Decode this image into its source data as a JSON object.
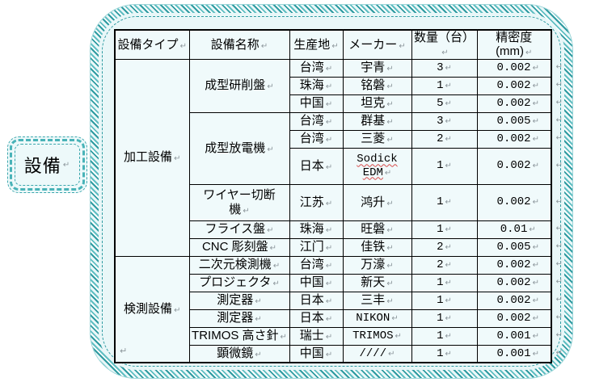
{
  "label_box": {
    "text": "設備"
  },
  "marks": {
    "cell_end": "↵",
    "paragraph": "↵"
  },
  "colors": {
    "frame_teal": "#2e9ba1",
    "frame_fill": "#e9f7f8",
    "cell_fill": "#f0fafb",
    "table_border": "#000000",
    "marker_gray": "#8d979c",
    "spellcheck_red": "#d84b4b",
    "page_background": "#ffffff"
  },
  "table": {
    "headers": [
      "設備タイプ",
      "設備名称",
      "生産地",
      "メーカー",
      "数量（台）",
      "精密度(mm)"
    ],
    "groups": [
      {
        "type": "加工設備",
        "items": [
          {
            "name": "成型研削盤",
            "rows": [
              {
                "place": "台湾",
                "maker": "宇青",
                "qty": "3",
                "precision": "0.002"
              },
              {
                "place": "珠海",
                "maker": "铭磐",
                "qty": "1",
                "precision": "0.002"
              },
              {
                "place": "中国",
                "maker": "坦克",
                "qty": "5",
                "precision": "0.002"
              }
            ]
          },
          {
            "name": "成型放電機",
            "rows": [
              {
                "place": "台湾",
                "maker": "群基",
                "qty": "3",
                "precision": "0.005"
              },
              {
                "place": "台湾",
                "maker": "三菱",
                "qty": "2",
                "precision": "0.002"
              },
              {
                "place": "日本",
                "maker_lines": [
                  "Sodick",
                  "EDM"
                ],
                "spell_error": true,
                "qty": "1",
                "precision": "0.002",
                "tall": true
              }
            ]
          },
          {
            "name_lines": [
              "ワイヤー切断",
              "機"
            ],
            "rows": [
              {
                "place": "江苏",
                "maker": "鸿升",
                "qty": "1",
                "precision": "0.002",
                "tall": true
              }
            ]
          },
          {
            "name": "フライス盤",
            "rows": [
              {
                "place": "珠海",
                "maker": "旺磐",
                "qty": "1",
                "precision": "0.01"
              }
            ]
          },
          {
            "name": "CNC 彫刻盤",
            "rows": [
              {
                "place": "江门",
                "maker": "佳铁",
                "qty": "2",
                "precision": "0.005"
              }
            ]
          }
        ]
      },
      {
        "type": "検測設備",
        "items": [
          {
            "name": "二次元検測機",
            "rows": [
              {
                "place": "台湾",
                "maker": "万濠",
                "qty": "2",
                "precision": "0.002"
              }
            ]
          },
          {
            "name": "プロジェクタ",
            "rows": [
              {
                "place": "中国",
                "maker": "新天",
                "qty": "1",
                "precision": "0.002"
              }
            ]
          },
          {
            "name": "測定器",
            "rows": [
              {
                "place": "日本",
                "maker": "三丰",
                "qty": "1",
                "precision": "0.002"
              }
            ]
          },
          {
            "name": "測定器",
            "rows": [
              {
                "place": "日本",
                "maker": "NIKON",
                "qty": "1",
                "precision": "0.002"
              }
            ]
          },
          {
            "name": "TRIMOS 高さ針",
            "rows": [
              {
                "place": "瑞士",
                "maker": "TRIMOS",
                "qty": "1",
                "precision": "0.001"
              }
            ]
          },
          {
            "name": "顕微鏡",
            "rows": [
              {
                "place": "中国",
                "maker": "////",
                "qty": "1",
                "precision": "0.001"
              }
            ]
          }
        ]
      }
    ]
  }
}
